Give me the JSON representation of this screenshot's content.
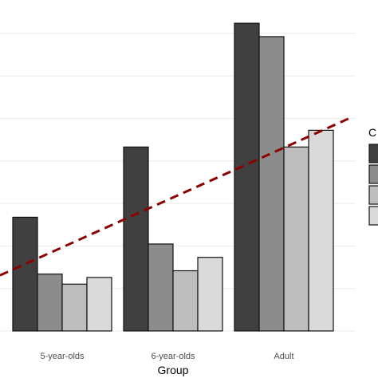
{
  "chart_data": {
    "type": "bar",
    "title": "",
    "xlabel": "Group",
    "ylabel": "",
    "categories": [
      "5-year-olds",
      "6-year-olds",
      "Adult"
    ],
    "series": [
      {
        "values": [
          0.34,
          0.55,
          0.92
        ]
      },
      {
        "values": [
          0.17,
          0.26,
          0.88
        ]
      },
      {
        "values": [
          0.14,
          0.18,
          0.55
        ]
      },
      {
        "values": [
          0.16,
          0.22,
          0.6
        ]
      }
    ],
    "ylim": [
      0,
      0.98
    ],
    "reference_line": {
      "style": "dashed",
      "color": "#8b0000",
      "slope": 0.149,
      "intercept": 0.25
    },
    "legend": {
      "position": "right",
      "title": "C",
      "fills": [
        "#404040",
        "#8c8c8c",
        "#bdbdbd",
        "#dadada"
      ]
    },
    "grid": true,
    "colors": {
      "bar_outline": "#111111",
      "grid": "#ebebeb",
      "axis_text": "#4d4d4d",
      "axis_title": "#000000"
    }
  }
}
